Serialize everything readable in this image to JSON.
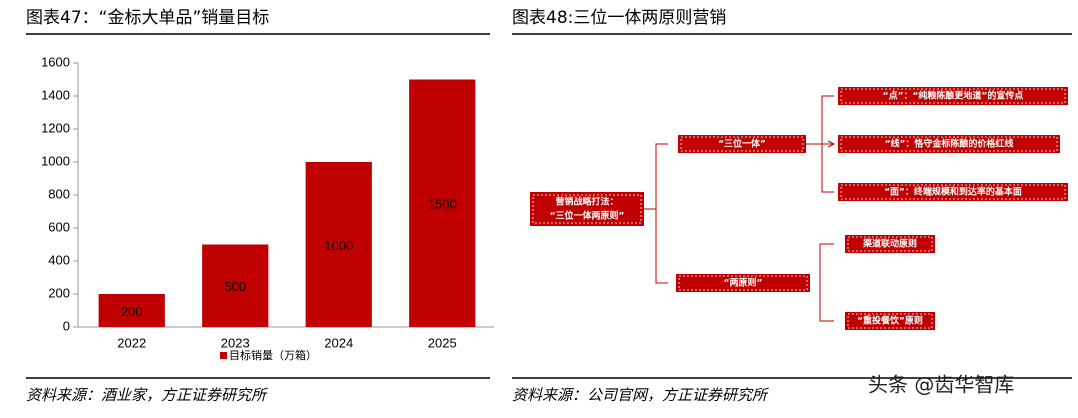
{
  "left_panel": {
    "title": "图表47：“金标大单品”销量目标",
    "source": "资料来源：酒业家，方正证券研究所"
  },
  "chart_data": {
    "type": "bar",
    "categories": [
      "2022",
      "2023",
      "2024",
      "2025"
    ],
    "series": [
      {
        "name": "目标销量（万箱）",
        "color": "#c00000",
        "values": [
          200,
          500,
          1000,
          1500
        ]
      }
    ],
    "ylim": [
      0,
      1600
    ],
    "yticks": [
      0,
      200,
      400,
      600,
      800,
      1000,
      1200,
      1400,
      1600
    ]
  },
  "right_panel": {
    "title": "图表48:三位一体两原则营销",
    "source": "资料来源：公司官网，方正证券研究所",
    "root": {
      "lines": [
        "营销战略打法：",
        "“三位一体两原则”"
      ]
    },
    "nodes": [
      "“三位一体”",
      "“两原则”",
      "“点”：“纯粮陈酿更地道”的宣传点",
      "“线”：恪守金标陈酿的价格红线",
      "“面”：终端规模和到达率的基本面",
      "渠道联动原则",
      "“重投餐饮”原则"
    ]
  },
  "watermark": "头条 @齿华智库"
}
